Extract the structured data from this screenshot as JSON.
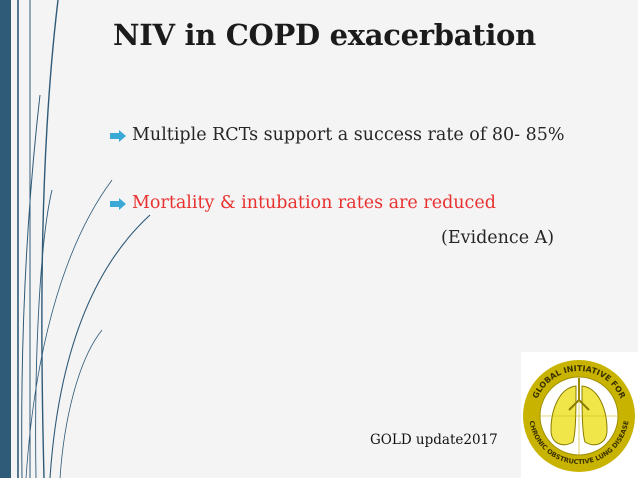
{
  "slide": {
    "title": "NIV in COPD exacerbation",
    "bullets": [
      {
        "text": "Multiple RCTs support a success rate of 80-  85%",
        "color": "#262626"
      },
      {
        "text": "Mortality & intubation rates are  reduced",
        "color": "#e8312f"
      }
    ],
    "evidence": "(Evidence A)",
    "source": "GOLD update2017",
    "logo": {
      "ring_text_top": "GLOBAL INITIATIVE FOR",
      "ring_text_bottom": "CHRONIC OBSTRUCTIVE LUNG DISEASE",
      "trademark": "TM",
      "colors": {
        "ring": "#c8b400",
        "lungs": "#f0e64a",
        "background": "#ffffff"
      }
    },
    "theme": {
      "accent_bar": "#2f5a78",
      "bullet_arrow": "#3aa9d6",
      "background": "#f4f4f4"
    }
  }
}
